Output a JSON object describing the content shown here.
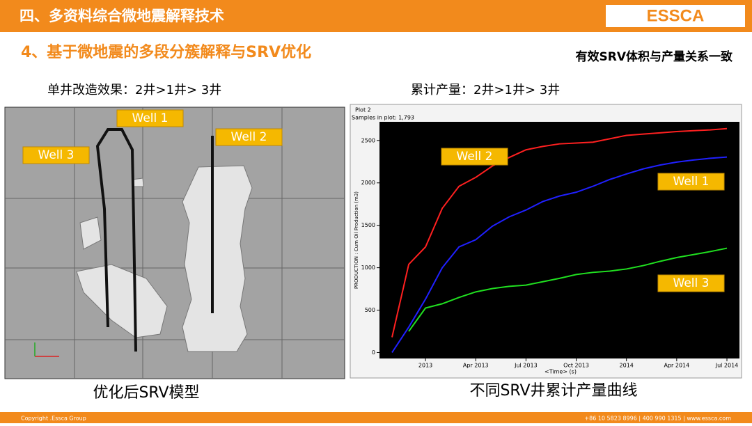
{
  "header": {
    "title": "四、多资料综合微地震解释技术",
    "logo": "ESSCA"
  },
  "subtitle": "4、基于微地震的多段分簇解释与SRV优化",
  "note": "有效SRV体积与产量关系一致",
  "left": {
    "caption_top": "单井改造效果：2井>1井> 3井",
    "caption_bottom": "优化后SRV模型",
    "wells": [
      "Well 1",
      "Well 2",
      "Well 3"
    ]
  },
  "right": {
    "caption_top": "累计产量：2井>1井> 3井",
    "caption_bottom": "不同SRV井累计产量曲线",
    "plot_name": "Plot 2",
    "samples": "Samples in plot: 1,793"
  },
  "chart_data": {
    "type": "line",
    "ylabel": "PRODUCTION : Cum Oil Production (m3)",
    "xlabel": "<Time> (s)",
    "categories": [
      null,
      null,
      "2013",
      null,
      null,
      "Apr 2013",
      null,
      null,
      "Jul 2013",
      null,
      null,
      "Oct 2013",
      null,
      null,
      "2014",
      null,
      null,
      "Apr 2014",
      null,
      null,
      "Jul 2014"
    ],
    "ylim": [
      -70,
      2720
    ],
    "yticks": [
      0,
      500,
      1000,
      1500,
      2000,
      2500
    ],
    "series": [
      {
        "name": "Well 2",
        "color": "#ff2020",
        "values": [
          180,
          1040,
          1245,
          1700,
          1960,
          2065,
          2200,
          2300,
          2390,
          2430,
          2460,
          2470,
          2480,
          2520,
          2560,
          2575,
          2590,
          2605,
          2615,
          2625,
          2640
        ]
      },
      {
        "name": "Well 1",
        "color": "#2020ff",
        "values": [
          0,
          300,
          630,
          1000,
          1245,
          1330,
          1490,
          1600,
          1680,
          1780,
          1845,
          1890,
          1960,
          2040,
          2105,
          2165,
          2210,
          2245,
          2270,
          2290,
          2305
        ]
      },
      {
        "name": "Well 3",
        "color": "#20e020",
        "values": [
          null,
          250,
          525,
          575,
          650,
          715,
          755,
          780,
          795,
          835,
          875,
          920,
          945,
          960,
          985,
          1025,
          1075,
          1120,
          1155,
          1190,
          1230
        ]
      }
    ]
  },
  "footer": {
    "copyright": "Copyright .Essca Group",
    "contact": "+86 10 5823 8996 | 400 990 1315 | www.essca.com"
  }
}
